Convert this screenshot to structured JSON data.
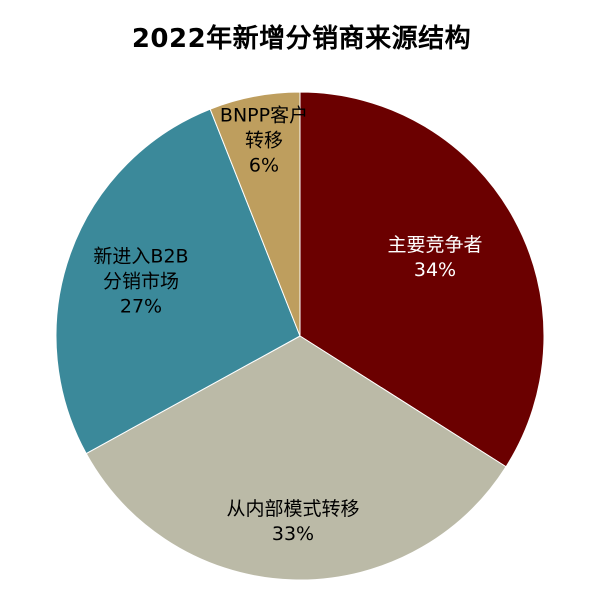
{
  "chart_data": {
    "type": "pie",
    "title": "2022年新增分销商来源结构",
    "start_angle_deg": 0,
    "direction": "clockwise",
    "slices": [
      {
        "label_lines": [
          "主要竞争者"
        ],
        "percent_label": "34%",
        "value": 34,
        "color": "#6B0000",
        "label_color": "#ffffff"
      },
      {
        "label_lines": [
          "从内部模式转移"
        ],
        "percent_label": "33%",
        "value": 33,
        "color": "#BBBAA7",
        "label_color": "#000000"
      },
      {
        "label_lines": [
          "新进入B2B",
          "分销市场"
        ],
        "percent_label": "27%",
        "value": 27,
        "color": "#3B899A",
        "label_color": "#000000"
      },
      {
        "label_lines": [
          "BNPP客户",
          "转移"
        ],
        "percent_label": "6%",
        "value": 6,
        "color": "#BE9E5E",
        "label_color": "#000000"
      }
    ]
  }
}
